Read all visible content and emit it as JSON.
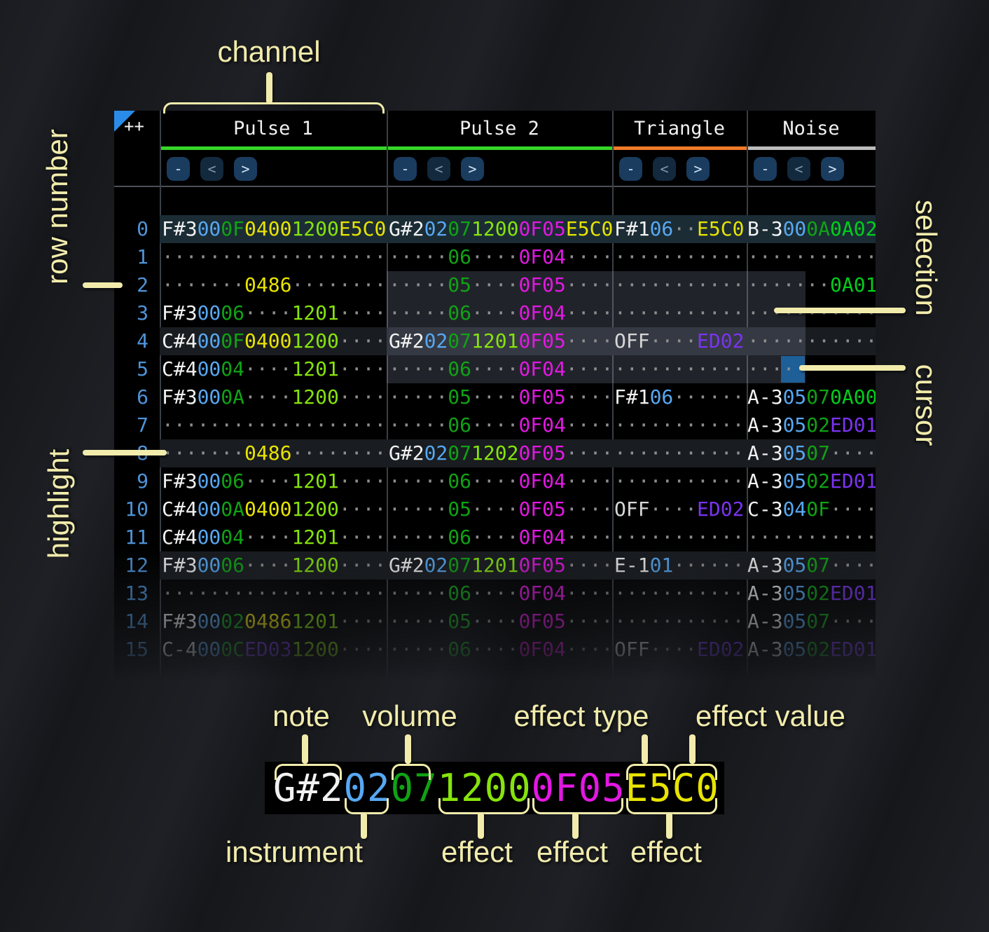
{
  "header": {
    "corner": "++",
    "channels": [
      {
        "name": "Pulse 1",
        "underline": "#35d628"
      },
      {
        "name": "Pulse 2",
        "underline": "#35d628"
      },
      {
        "name": "Triangle",
        "underline": "#f07b28"
      },
      {
        "name": "Noise",
        "underline": "#bcbcbc"
      }
    ],
    "buttons": [
      "-",
      "<",
      ">"
    ]
  },
  "palette": {
    "n": "#f2f2f2",
    "o": "#d6d6d6",
    "i": "#57a8f2",
    "v": "#0fa314",
    "g": "#00cf1a",
    "l": "#86e30c",
    "y": "#e8e400",
    "m": "#e318e3",
    "p": "#7b33f0",
    "d": "#8f8f8f"
  },
  "colors": {
    "row_current_bg": "#1b2c35",
    "row_highlight_bg": "#191c20",
    "selection_bg": "rgba(167,175,212,0.20)",
    "cursor_bg": "#1e5f97",
    "corner_triangle": "#2a8ce8"
  },
  "rows": [
    {
      "num": "0",
      "p1": [
        [
          "F#3",
          "n"
        ],
        [
          "00",
          "i"
        ],
        [
          "0F",
          "v"
        ],
        [
          "0400",
          "y"
        ],
        [
          "1200",
          "l"
        ],
        [
          "E5C0",
          "y"
        ]
      ],
      "p2": [
        [
          "G#2",
          "n"
        ],
        [
          "02",
          "i"
        ],
        [
          "07",
          "v"
        ],
        [
          "1200",
          "l"
        ],
        [
          "0F05",
          "m"
        ],
        [
          "E5C0",
          "y"
        ]
      ],
      "tri": [
        [
          "F#1",
          "n"
        ],
        [
          "06",
          "i"
        ],
        [
          "··",
          "d"
        ],
        [
          "E5C0",
          "y"
        ]
      ],
      "noi": [
        [
          "B-3",
          "n"
        ],
        [
          "00",
          "i"
        ],
        [
          "0A",
          "v"
        ],
        [
          "0A02",
          "g"
        ]
      ]
    },
    {
      "num": "1",
      "p1": [
        [
          "···················",
          "d"
        ]
      ],
      "p2": [
        [
          "·····",
          "d"
        ],
        [
          "06",
          "v"
        ],
        [
          "····",
          "d"
        ],
        [
          "0F04",
          "m"
        ],
        [
          "····",
          "d"
        ]
      ],
      "tri": [
        [
          "···········",
          "d"
        ]
      ],
      "noi": [
        [
          "···········",
          "d"
        ]
      ]
    },
    {
      "num": "2",
      "p1": [
        [
          "·······",
          "d"
        ],
        [
          "0486",
          "y"
        ],
        [
          "········",
          "d"
        ]
      ],
      "p2": [
        [
          "·····",
          "d"
        ],
        [
          "05",
          "v"
        ],
        [
          "····",
          "d"
        ],
        [
          "0F05",
          "m"
        ],
        [
          "····",
          "d"
        ]
      ],
      "tri": [
        [
          "···········",
          "d"
        ]
      ],
      "noi": [
        [
          "·······",
          "d"
        ],
        [
          "0A01",
          "g"
        ]
      ]
    },
    {
      "num": "3",
      "p1": [
        [
          "F#3",
          "n"
        ],
        [
          "00",
          "i"
        ],
        [
          "06",
          "v"
        ],
        [
          "····",
          "d"
        ],
        [
          "1201",
          "l"
        ],
        [
          "····",
          "d"
        ]
      ],
      "p2": [
        [
          "·····",
          "d"
        ],
        [
          "06",
          "v"
        ],
        [
          "····",
          "d"
        ],
        [
          "0F04",
          "m"
        ],
        [
          "····",
          "d"
        ]
      ],
      "tri": [
        [
          "···········",
          "d"
        ]
      ],
      "noi": [
        [
          "···········",
          "d"
        ]
      ]
    },
    {
      "num": "4",
      "p1": [
        [
          "C#4",
          "n"
        ],
        [
          "00",
          "i"
        ],
        [
          "0F",
          "v"
        ],
        [
          "0400",
          "y"
        ],
        [
          "1200",
          "l"
        ],
        [
          "····",
          "d"
        ]
      ],
      "p2": [
        [
          "G#2",
          "n"
        ],
        [
          "02",
          "i"
        ],
        [
          "07",
          "v"
        ],
        [
          "1201",
          "l"
        ],
        [
          "0F05",
          "m"
        ],
        [
          "····",
          "d"
        ]
      ],
      "tri": [
        [
          "OFF",
          "o"
        ],
        [
          "····",
          "d"
        ],
        [
          "ED02",
          "p"
        ]
      ],
      "noi": [
        [
          "···········",
          "d"
        ]
      ]
    },
    {
      "num": "5",
      "p1": [
        [
          "C#4",
          "n"
        ],
        [
          "00",
          "i"
        ],
        [
          "04",
          "v"
        ],
        [
          "····",
          "d"
        ],
        [
          "1201",
          "l"
        ],
        [
          "····",
          "d"
        ]
      ],
      "p2": [
        [
          "·····",
          "d"
        ],
        [
          "06",
          "v"
        ],
        [
          "····",
          "d"
        ],
        [
          "0F04",
          "m"
        ],
        [
          "····",
          "d"
        ]
      ],
      "tri": [
        [
          "···········",
          "d"
        ]
      ],
      "noi": [
        [
          "···········",
          "d"
        ]
      ]
    },
    {
      "num": "6",
      "p1": [
        [
          "F#3",
          "n"
        ],
        [
          "00",
          "i"
        ],
        [
          "0A",
          "v"
        ],
        [
          "····",
          "d"
        ],
        [
          "1200",
          "l"
        ],
        [
          "····",
          "d"
        ]
      ],
      "p2": [
        [
          "·····",
          "d"
        ],
        [
          "05",
          "v"
        ],
        [
          "····",
          "d"
        ],
        [
          "0F05",
          "m"
        ],
        [
          "····",
          "d"
        ]
      ],
      "tri": [
        [
          "F#1",
          "n"
        ],
        [
          "06",
          "i"
        ],
        [
          "······",
          "d"
        ]
      ],
      "noi": [
        [
          "A-3",
          "n"
        ],
        [
          "05",
          "i"
        ],
        [
          "07",
          "v"
        ],
        [
          "0A00",
          "g"
        ]
      ]
    },
    {
      "num": "7",
      "p1": [
        [
          "···················",
          "d"
        ]
      ],
      "p2": [
        [
          "·····",
          "d"
        ],
        [
          "06",
          "v"
        ],
        [
          "····",
          "d"
        ],
        [
          "0F04",
          "m"
        ],
        [
          "····",
          "d"
        ]
      ],
      "tri": [
        [
          "···········",
          "d"
        ]
      ],
      "noi": [
        [
          "A-3",
          "n"
        ],
        [
          "05",
          "i"
        ],
        [
          "02",
          "v"
        ],
        [
          "ED01",
          "p"
        ]
      ]
    },
    {
      "num": "8",
      "p1": [
        [
          "·······",
          "d"
        ],
        [
          "0486",
          "y"
        ],
        [
          "········",
          "d"
        ]
      ],
      "p2": [
        [
          "G#2",
          "n"
        ],
        [
          "02",
          "i"
        ],
        [
          "07",
          "v"
        ],
        [
          "1202",
          "l"
        ],
        [
          "0F05",
          "m"
        ],
        [
          "····",
          "d"
        ]
      ],
      "tri": [
        [
          "···········",
          "d"
        ]
      ],
      "noi": [
        [
          "A-3",
          "n"
        ],
        [
          "05",
          "i"
        ],
        [
          "07",
          "v"
        ],
        [
          "····",
          "d"
        ]
      ]
    },
    {
      "num": "9",
      "p1": [
        [
          "F#3",
          "n"
        ],
        [
          "00",
          "i"
        ],
        [
          "06",
          "v"
        ],
        [
          "····",
          "d"
        ],
        [
          "1201",
          "l"
        ],
        [
          "····",
          "d"
        ]
      ],
      "p2": [
        [
          "·····",
          "d"
        ],
        [
          "06",
          "v"
        ],
        [
          "····",
          "d"
        ],
        [
          "0F04",
          "m"
        ],
        [
          "····",
          "d"
        ]
      ],
      "tri": [
        [
          "···········",
          "d"
        ]
      ],
      "noi": [
        [
          "A-3",
          "n"
        ],
        [
          "05",
          "i"
        ],
        [
          "02",
          "v"
        ],
        [
          "ED01",
          "p"
        ]
      ]
    },
    {
      "num": "10",
      "p1": [
        [
          "C#4",
          "n"
        ],
        [
          "00",
          "i"
        ],
        [
          "0A",
          "v"
        ],
        [
          "0400",
          "y"
        ],
        [
          "1200",
          "l"
        ],
        [
          "····",
          "d"
        ]
      ],
      "p2": [
        [
          "·····",
          "d"
        ],
        [
          "05",
          "v"
        ],
        [
          "····",
          "d"
        ],
        [
          "0F05",
          "m"
        ],
        [
          "····",
          "d"
        ]
      ],
      "tri": [
        [
          "OFF",
          "o"
        ],
        [
          "····",
          "d"
        ],
        [
          "ED02",
          "p"
        ]
      ],
      "noi": [
        [
          "C-3",
          "n"
        ],
        [
          "04",
          "i"
        ],
        [
          "0F",
          "v"
        ],
        [
          "····",
          "d"
        ]
      ]
    },
    {
      "num": "11",
      "p1": [
        [
          "C#4",
          "n"
        ],
        [
          "00",
          "i"
        ],
        [
          "04",
          "v"
        ],
        [
          "····",
          "d"
        ],
        [
          "1201",
          "l"
        ],
        [
          "····",
          "d"
        ]
      ],
      "p2": [
        [
          "·····",
          "d"
        ],
        [
          "06",
          "v"
        ],
        [
          "····",
          "d"
        ],
        [
          "0F04",
          "m"
        ],
        [
          "····",
          "d"
        ]
      ],
      "tri": [
        [
          "···········",
          "d"
        ]
      ],
      "noi": [
        [
          "···········",
          "d"
        ]
      ]
    },
    {
      "num": "12",
      "p1": [
        [
          "F#3",
          "n"
        ],
        [
          "00",
          "i"
        ],
        [
          "06",
          "v"
        ],
        [
          "····",
          "d"
        ],
        [
          "1200",
          "l"
        ],
        [
          "····",
          "d"
        ]
      ],
      "p2": [
        [
          "G#2",
          "n"
        ],
        [
          "02",
          "i"
        ],
        [
          "07",
          "v"
        ],
        [
          "1201",
          "l"
        ],
        [
          "0F05",
          "m"
        ],
        [
          "····",
          "d"
        ]
      ],
      "tri": [
        [
          "E-1",
          "n"
        ],
        [
          "01",
          "i"
        ],
        [
          "······",
          "d"
        ]
      ],
      "noi": [
        [
          "A-3",
          "n"
        ],
        [
          "05",
          "i"
        ],
        [
          "07",
          "v"
        ],
        [
          "····",
          "d"
        ]
      ]
    },
    {
      "num": "13",
      "p1": [
        [
          "···················",
          "d"
        ]
      ],
      "p2": [
        [
          "·····",
          "d"
        ],
        [
          "06",
          "v"
        ],
        [
          "····",
          "d"
        ],
        [
          "0F04",
          "m"
        ],
        [
          "····",
          "d"
        ]
      ],
      "tri": [
        [
          "···········",
          "d"
        ]
      ],
      "noi": [
        [
          "A-3",
          "n"
        ],
        [
          "05",
          "i"
        ],
        [
          "02",
          "v"
        ],
        [
          "ED01",
          "p"
        ]
      ]
    },
    {
      "num": "14",
      "p1": [
        [
          "F#3",
          "n"
        ],
        [
          "00",
          "i"
        ],
        [
          "02",
          "v"
        ],
        [
          "0486",
          "y"
        ],
        [
          "1201",
          "l"
        ],
        [
          "····",
          "d"
        ]
      ],
      "p2": [
        [
          "·····",
          "d"
        ],
        [
          "05",
          "v"
        ],
        [
          "····",
          "d"
        ],
        [
          "0F05",
          "m"
        ],
        [
          "····",
          "d"
        ]
      ],
      "tri": [
        [
          "···········",
          "d"
        ]
      ],
      "noi": [
        [
          "A-3",
          "n"
        ],
        [
          "05",
          "i"
        ],
        [
          "07",
          "v"
        ],
        [
          "····",
          "d"
        ]
      ]
    },
    {
      "num": "15",
      "p1": [
        [
          "C-4",
          "n"
        ],
        [
          "00",
          "i"
        ],
        [
          "0C",
          "v"
        ],
        [
          "ED03",
          "p"
        ],
        [
          "1200",
          "l"
        ],
        [
          "····",
          "d"
        ]
      ],
      "p2": [
        [
          "·····",
          "d"
        ],
        [
          "06",
          "v"
        ],
        [
          "····",
          "d"
        ],
        [
          "0F04",
          "m"
        ],
        [
          "····",
          "d"
        ]
      ],
      "tri": [
        [
          "OFF",
          "o"
        ],
        [
          "····",
          "d"
        ],
        [
          "ED02",
          "p"
        ]
      ],
      "noi": [
        [
          "A-3",
          "n"
        ],
        [
          "05",
          "i"
        ],
        [
          "02",
          "v"
        ],
        [
          "ED01",
          "p"
        ]
      ]
    }
  ],
  "annotations": {
    "channel": "channel",
    "row_number": "row number",
    "selection": "selection",
    "cursor": "cursor",
    "highlight": "highlight"
  },
  "breakdown": {
    "labels": {
      "note": "note",
      "volume": "volume",
      "effect_type": "effect type",
      "effect_value": "effect value",
      "instrument": "instrument",
      "effect1": "effect",
      "effect2": "effect",
      "effect3": "effect"
    },
    "segments": [
      [
        "G#2",
        "n"
      ],
      [
        "02",
        "i"
      ],
      [
        "07",
        "v"
      ],
      [
        "1200",
        "l"
      ],
      [
        "0F05",
        "m"
      ],
      [
        "E5C0",
        "y"
      ]
    ]
  }
}
